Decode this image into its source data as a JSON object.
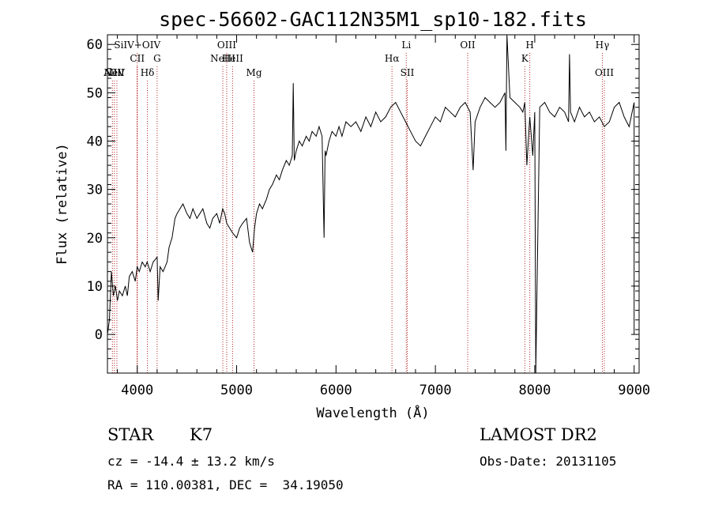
{
  "chart_data": {
    "type": "line",
    "title": "spec-56602-GAC112N35M1_sp10-182.fits",
    "xlabel": "Wavelength (Å)",
    "ylabel": "Flux (relative)",
    "xlim": [
      3700,
      9050
    ],
    "ylim": [
      -8,
      62
    ],
    "xticks": [
      4000,
      5000,
      6000,
      7000,
      8000,
      9000
    ],
    "yticks": [
      0,
      10,
      20,
      30,
      40,
      50,
      60
    ],
    "grid": false,
    "series": [
      {
        "x": [
          3700,
          3720,
          3740,
          3760,
          3780,
          3800,
          3820,
          3850,
          3880,
          3900,
          3920,
          3950,
          3980,
          4000,
          4020,
          4050,
          4080,
          4100,
          4130,
          4160,
          4200,
          4210,
          4230,
          4260,
          4300,
          4320,
          4350,
          4380,
          4400,
          4430,
          4460,
          4500,
          4530,
          4560,
          4600,
          4630,
          4660,
          4700,
          4730,
          4760,
          4800,
          4830,
          4860,
          4880,
          4900,
          4930,
          4960,
          5000,
          5030,
          5060,
          5100,
          5130,
          5160,
          5180,
          5200,
          5230,
          5260,
          5300,
          5330,
          5360,
          5400,
          5430,
          5460,
          5500,
          5530,
          5560,
          5570,
          5580,
          5600,
          5630,
          5660,
          5700,
          5730,
          5760,
          5800,
          5830,
          5860,
          5880,
          5890,
          5900,
          5930,
          5960,
          6000,
          6030,
          6060,
          6100,
          6150,
          6200,
          6250,
          6300,
          6350,
          6400,
          6450,
          6500,
          6550,
          6600,
          6650,
          6700,
          6750,
          6800,
          6850,
          6900,
          6950,
          7000,
          7050,
          7100,
          7150,
          7200,
          7250,
          7300,
          7350,
          7380,
          7400,
          7450,
          7500,
          7550,
          7600,
          7650,
          7700,
          7710,
          7720,
          7750,
          7800,
          7850,
          7880,
          7900,
          7920,
          7950,
          7980,
          8000,
          8010,
          8050,
          8100,
          8150,
          8200,
          8250,
          8300,
          8340,
          8350,
          8360,
          8400,
          8450,
          8500,
          8550,
          8600,
          8650,
          8700,
          8750,
          8800,
          8850,
          8900,
          8950,
          9000,
          9000
        ],
        "values": [
          0,
          3,
          13,
          8,
          10,
          7,
          9,
          8,
          10,
          8,
          12,
          13,
          11,
          14,
          13,
          15,
          14,
          15,
          13,
          15,
          16,
          7,
          14,
          13,
          15,
          18,
          20,
          24,
          25,
          26,
          27,
          25,
          24,
          26,
          24,
          25,
          26,
          23,
          22,
          24,
          25,
          23,
          26,
          25,
          23,
          22,
          21,
          20,
          22,
          23,
          24,
          19,
          17,
          22,
          25,
          27,
          26,
          28,
          30,
          31,
          33,
          32,
          34,
          36,
          35,
          37,
          52,
          36,
          38,
          40,
          39,
          41,
          40,
          42,
          41,
          43,
          41,
          20,
          38,
          37,
          40,
          42,
          41,
          43,
          41,
          44,
          43,
          44,
          42,
          45,
          43,
          46,
          44,
          45,
          47,
          48,
          46,
          44,
          42,
          40,
          39,
          41,
          43,
          45,
          44,
          47,
          46,
          45,
          47,
          48,
          46,
          34,
          44,
          47,
          49,
          48,
          47,
          48,
          50,
          38,
          62,
          49,
          48,
          47,
          46,
          48,
          35,
          45,
          37,
          46,
          -8,
          47,
          48,
          46,
          45,
          47,
          46,
          44,
          58,
          46,
          44,
          47,
          45,
          46,
          44,
          45,
          43,
          44,
          47,
          48,
          45,
          43,
          48,
          0
        ]
      }
    ],
    "lines": [
      {
        "label": "AlII",
        "x": 3750,
        "row": 3
      },
      {
        "label": "NeV",
        "x": 3770,
        "row": 3
      },
      {
        "label": "OII",
        "x": 3795,
        "row": 3
      },
      {
        "label": "SiIV+OIV",
        "x": 4000,
        "row": 1
      },
      {
        "label": "CII",
        "x": 4000,
        "row": 2
      },
      {
        "label": "Hδ",
        "x": 4102,
        "row": 3
      },
      {
        "label": "G",
        "x": 4200,
        "row": 2
      },
      {
        "label": "NeIII",
        "x": 4861,
        "row": 2
      },
      {
        "label": "OIII",
        "x": 4900,
        "row": 1
      },
      {
        "label": "HeII",
        "x": 4959,
        "row": 2
      },
      {
        "label": "Mg",
        "x": 5175,
        "row": 3
      },
      {
        "label": "Hα",
        "x": 6563,
        "row": 2
      },
      {
        "label": "Li",
        "x": 6707,
        "row": 1
      },
      {
        "label": "SII",
        "x": 6717,
        "row": 3
      },
      {
        "label": "OII",
        "x": 7325,
        "row": 1
      },
      {
        "label": "K",
        "x": 7900,
        "row": 2
      },
      {
        "label": "H",
        "x": 7950,
        "row": 1
      },
      {
        "label": "Hγ",
        "x": 8680,
        "row": 1
      },
      {
        "label": "OIII",
        "x": 8700,
        "row": 3
      }
    ]
  },
  "info": {
    "object_class": "STAR",
    "subclass": "K7",
    "redshift": "cz = -14.4 ± 13.2 km/s",
    "coords": "RA = 110.00381, DEC =  34.19050",
    "survey": "LAMOST DR2",
    "obs_date": "Obs-Date: 20131105"
  },
  "colors": {
    "line_markers": "#b22222",
    "spectrum": "#000000"
  }
}
